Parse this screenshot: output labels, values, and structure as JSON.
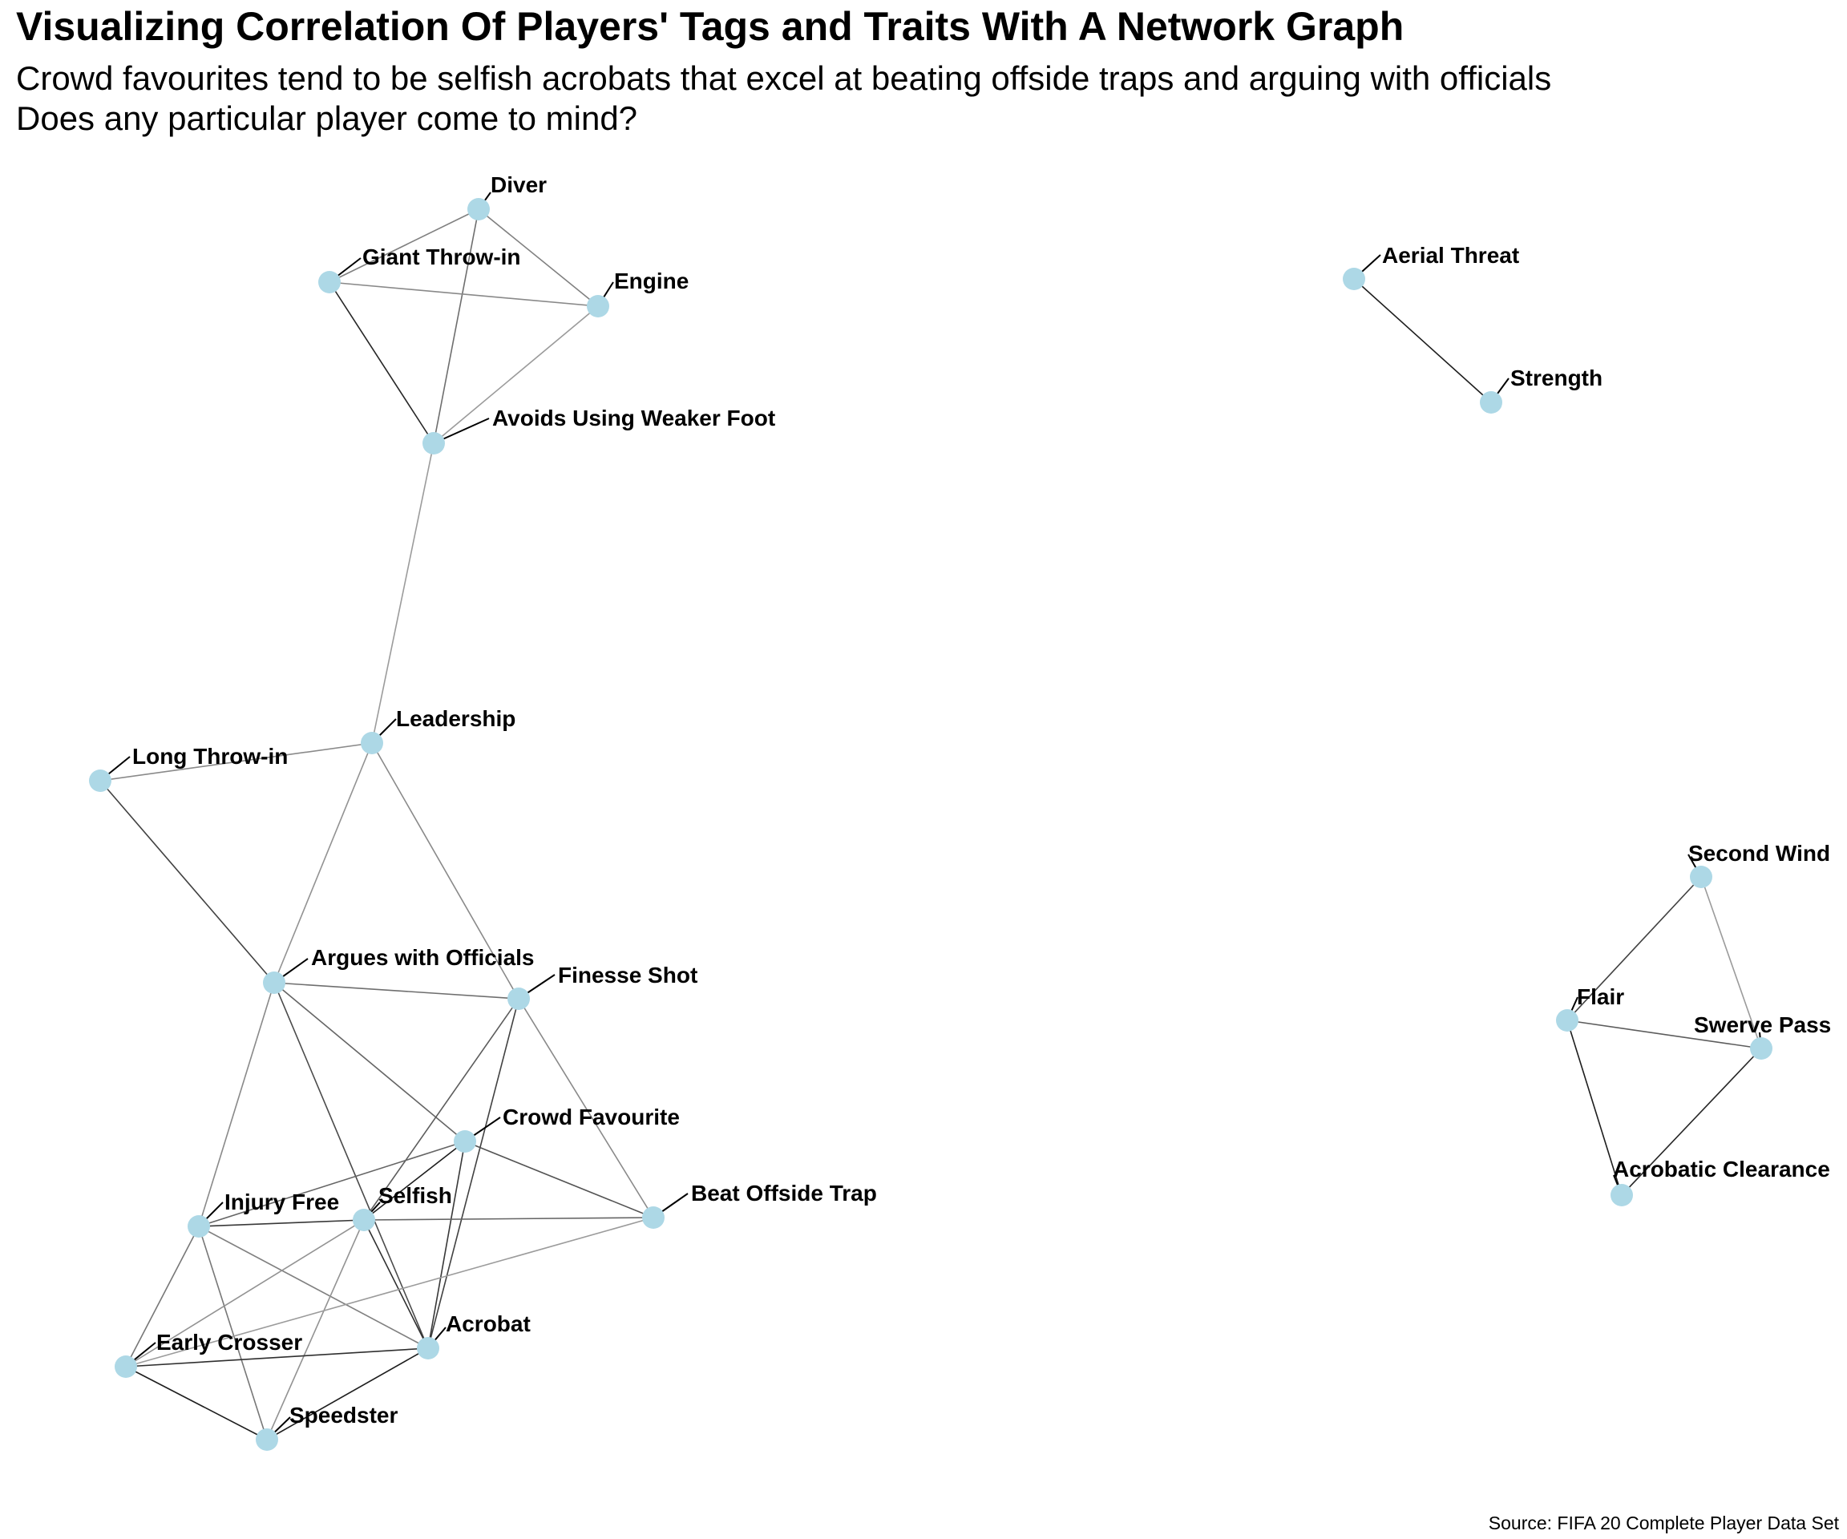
{
  "title": "Visualizing Correlation Of Players' Tags and Traits With A Network Graph",
  "subtitle_lines": [
    "Crowd favourites tend to be selfish acrobats that excel at beating offside traps and arguing with officials",
    "Does any particular player come to mind?"
  ],
  "caption": "Source: FIFA 20 Complete Player Data Set",
  "colors": {
    "node": "#add8e6",
    "edge_dark": "#1a1a1a",
    "edge_mid": "#777777",
    "edge_light": "#bbbbbb",
    "text": "#000000"
  },
  "nodes": [
    {
      "id": "diver",
      "label": "Diver"
    },
    {
      "id": "giant_throw_in",
      "label": "Giant Throw-in"
    },
    {
      "id": "engine",
      "label": "Engine"
    },
    {
      "id": "avoids_weaker_foot",
      "label": "Avoids Using Weaker Foot"
    },
    {
      "id": "aerial_threat",
      "label": "Aerial Threat"
    },
    {
      "id": "strength",
      "label": "Strength"
    },
    {
      "id": "leadership",
      "label": "Leadership"
    },
    {
      "id": "long_throw_in",
      "label": "Long Throw-in"
    },
    {
      "id": "second_wind",
      "label": "Second Wind"
    },
    {
      "id": "flair",
      "label": "Flair"
    },
    {
      "id": "swerve_pass",
      "label": "Swerve Pass"
    },
    {
      "id": "acrobatic_clearance",
      "label": "Acrobatic Clearance"
    },
    {
      "id": "argues_officials",
      "label": "Argues with Officials"
    },
    {
      "id": "finesse_shot",
      "label": "Finesse Shot"
    },
    {
      "id": "crowd_favourite",
      "label": "Crowd Favourite"
    },
    {
      "id": "injury_free",
      "label": "Injury Free"
    },
    {
      "id": "selfish",
      "label": "Selfish"
    },
    {
      "id": "beat_offside_trap",
      "label": "Beat Offside Trap"
    },
    {
      "id": "acrobat",
      "label": "Acrobat"
    },
    {
      "id": "early_crosser",
      "label": "Early Crosser"
    },
    {
      "id": "speedster",
      "label": "Speedster"
    }
  ],
  "edges": [
    {
      "source": "diver",
      "target": "giant_throw_in",
      "strength": 0.4
    },
    {
      "source": "diver",
      "target": "engine",
      "strength": 0.4
    },
    {
      "source": "diver",
      "target": "avoids_weaker_foot",
      "strength": 0.5
    },
    {
      "source": "giant_throw_in",
      "target": "engine",
      "strength": 0.35
    },
    {
      "source": "giant_throw_in",
      "target": "avoids_weaker_foot",
      "strength": 0.9
    },
    {
      "source": "engine",
      "target": "avoids_weaker_foot",
      "strength": 0.25
    },
    {
      "source": "avoids_weaker_foot",
      "target": "leadership",
      "strength": 0.25
    },
    {
      "source": "aerial_threat",
      "target": "strength",
      "strength": 0.95
    },
    {
      "source": "leadership",
      "target": "long_throw_in",
      "strength": 0.35
    },
    {
      "source": "leadership",
      "target": "argues_officials",
      "strength": 0.3
    },
    {
      "source": "leadership",
      "target": "finesse_shot",
      "strength": 0.35
    },
    {
      "source": "long_throw_in",
      "target": "argues_officials",
      "strength": 0.75
    },
    {
      "source": "argues_officials",
      "target": "finesse_shot",
      "strength": 0.5
    },
    {
      "source": "argues_officials",
      "target": "crowd_favourite",
      "strength": 0.55
    },
    {
      "source": "argues_officials",
      "target": "injury_free",
      "strength": 0.35
    },
    {
      "source": "argues_officials",
      "target": "acrobat",
      "strength": 0.7
    },
    {
      "source": "finesse_shot",
      "target": "selfish",
      "strength": 0.6
    },
    {
      "source": "finesse_shot",
      "target": "acrobat",
      "strength": 0.75
    },
    {
      "source": "finesse_shot",
      "target": "beat_offside_trap",
      "strength": 0.35
    },
    {
      "source": "crowd_favourite",
      "target": "selfish",
      "strength": 0.95
    },
    {
      "source": "crowd_favourite",
      "target": "injury_free",
      "strength": 0.55
    },
    {
      "source": "crowd_favourite",
      "target": "beat_offside_trap",
      "strength": 0.65
    },
    {
      "source": "crowd_favourite",
      "target": "acrobat",
      "strength": 0.8
    },
    {
      "source": "injury_free",
      "target": "selfish",
      "strength": 0.8
    },
    {
      "source": "injury_free",
      "target": "acrobat",
      "strength": 0.4
    },
    {
      "source": "injury_free",
      "target": "early_crosser",
      "strength": 0.45
    },
    {
      "source": "injury_free",
      "target": "speedster",
      "strength": 0.45
    },
    {
      "source": "selfish",
      "target": "beat_offside_trap",
      "strength": 0.55
    },
    {
      "source": "selfish",
      "target": "acrobat",
      "strength": 0.85
    },
    {
      "source": "selfish",
      "target": "early_crosser",
      "strength": 0.3
    },
    {
      "source": "selfish",
      "target": "speedster",
      "strength": 0.3
    },
    {
      "source": "beat_offside_trap",
      "target": "early_crosser",
      "strength": 0.25
    },
    {
      "source": "acrobat",
      "target": "early_crosser",
      "strength": 0.85
    },
    {
      "source": "acrobat",
      "target": "speedster",
      "strength": 0.95
    },
    {
      "source": "early_crosser",
      "target": "speedster",
      "strength": 0.95
    },
    {
      "source": "second_wind",
      "target": "flair",
      "strength": 0.75
    },
    {
      "source": "second_wind",
      "target": "swerve_pass",
      "strength": 0.25
    },
    {
      "source": "flair",
      "target": "swerve_pass",
      "strength": 0.6
    },
    {
      "source": "flair",
      "target": "acrobatic_clearance",
      "strength": 0.95
    },
    {
      "source": "swerve_pass",
      "target": "acrobatic_clearance",
      "strength": 0.9
    }
  ]
}
